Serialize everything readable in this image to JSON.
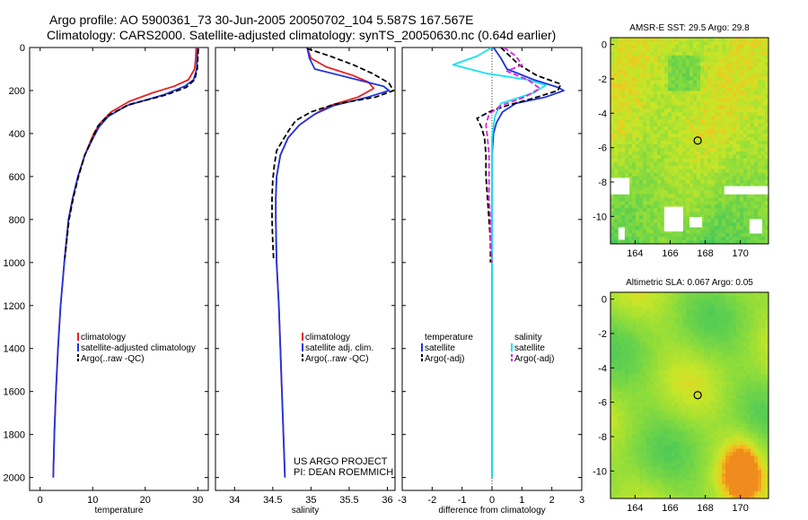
{
  "figure": {
    "title_line1": "Argo profile: AO 5900361_73 30-Jun-2005 20050702_104 5.587S 167.567E",
    "title_line2": "Climatology: CARS2000. Satellite-adjusted climatology: synTS_20050630.nc (0.64d earlier)",
    "credit_line1": "US ARGO PROJECT",
    "credit_line2": "PI: DEAN ROEMMICH"
  },
  "colors": {
    "climatology": "#e8201f",
    "satellite": "#1f35e0",
    "argo": "#000000",
    "salinity": "#19e3f0",
    "salinity_satellite": "#19e3f0",
    "salinity_argo": "#e020e0",
    "zero_line": "#000000"
  },
  "chart_data": [
    {
      "id": "temperature",
      "type": "line",
      "xlabel": "temperature",
      "ylabel": "",
      "xlim": [
        -2,
        32
      ],
      "ylim": [
        2060,
        0
      ],
      "xticks": [
        0,
        10,
        20,
        30
      ],
      "yticks": [
        0,
        200,
        400,
        600,
        800,
        1000,
        1200,
        1400,
        1600,
        1800,
        2000
      ],
      "legend": {
        "position": "middle-right",
        "entries": [
          {
            "label": "climatology",
            "color_key": "climatology",
            "dashed": false
          },
          {
            "label": "satellite-adjusted climatology",
            "color_key": "satellite",
            "dashed": false
          },
          {
            "label": "Argo(..raw -QC)",
            "color_key": "argo",
            "dashed": true
          }
        ]
      },
      "series": [
        {
          "name": "climatology",
          "color_key": "climatology",
          "dashed": false,
          "points": [
            [
              29.7,
              0
            ],
            [
              29.6,
              50
            ],
            [
              29.4,
              100
            ],
            [
              28.2,
              150
            ],
            [
              25.5,
              180
            ],
            [
              21.5,
              210
            ],
            [
              17,
              250
            ],
            [
              13.5,
              300
            ],
            [
              11.5,
              350
            ],
            [
              10.2,
              400
            ],
            [
              8.5,
              500
            ],
            [
              7.2,
              600
            ],
            [
              6.2,
              700
            ],
            [
              5.4,
              800
            ],
            [
              4.6,
              1000
            ],
            [
              3.9,
              1200
            ],
            [
              3.4,
              1400
            ],
            [
              3,
              1600
            ],
            [
              2.7,
              1800
            ],
            [
              2.5,
              2000
            ]
          ]
        },
        {
          "name": "satellite-adjusted climatology",
          "color_key": "satellite",
          "dashed": false,
          "points": [
            [
              30,
              0
            ],
            [
              29.9,
              50
            ],
            [
              29.8,
              100
            ],
            [
              29.2,
              150
            ],
            [
              27.5,
              180
            ],
            [
              23.5,
              220
            ],
            [
              16.5,
              270
            ],
            [
              13,
              320
            ],
            [
              11.2,
              370
            ],
            [
              10.1,
              420
            ],
            [
              8.5,
              500
            ],
            [
              7.2,
              600
            ],
            [
              6.2,
              700
            ],
            [
              5.4,
              800
            ],
            [
              4.6,
              1000
            ],
            [
              3.9,
              1200
            ],
            [
              3.4,
              1400
            ],
            [
              3,
              1600
            ],
            [
              2.7,
              1800
            ],
            [
              2.5,
              2000
            ]
          ]
        },
        {
          "name": "Argo(..raw -QC)",
          "color_key": "argo",
          "dashed": true,
          "points": [
            [
              30.1,
              5
            ],
            [
              30,
              50
            ],
            [
              29.9,
              100
            ],
            [
              29.4,
              150
            ],
            [
              27.8,
              185
            ],
            [
              24,
              220
            ],
            [
              17,
              265
            ],
            [
              13,
              315
            ],
            [
              11,
              365
            ],
            [
              10,
              420
            ],
            [
              8.5,
              500
            ],
            [
              7.3,
              600
            ],
            [
              6.3,
              700
            ],
            [
              5.5,
              800
            ],
            [
              4.7,
              980
            ]
          ]
        }
      ]
    },
    {
      "id": "salinity",
      "type": "line",
      "xlabel": "salinity",
      "ylabel": "",
      "xlim": [
        33.75,
        36.1
      ],
      "ylim": [
        2060,
        0
      ],
      "xticks": [
        34,
        34.5,
        35,
        35.5,
        36
      ],
      "yticks": [
        0,
        200,
        400,
        600,
        800,
        1000,
        1200,
        1400,
        1600,
        1800,
        2000
      ],
      "legend": {
        "position": "middle-right",
        "entries": [
          {
            "label": "climatology",
            "color_key": "climatology",
            "dashed": false
          },
          {
            "label": "satellite adj. clim.",
            "color_key": "satellite",
            "dashed": false
          },
          {
            "label": "Argo(..raw -QC)",
            "color_key": "argo",
            "dashed": true
          }
        ]
      },
      "series": [
        {
          "name": "climatology",
          "color_key": "climatology",
          "dashed": false,
          "points": [
            [
              34.95,
              0
            ],
            [
              35,
              50
            ],
            [
              35.2,
              90
            ],
            [
              35.55,
              130
            ],
            [
              35.75,
              160
            ],
            [
              35.82,
              190
            ],
            [
              35.62,
              230
            ],
            [
              35.25,
              270
            ],
            [
              35.05,
              310
            ],
            [
              34.85,
              360
            ],
            [
              34.7,
              420
            ],
            [
              34.6,
              500
            ],
            [
              34.55,
              600
            ],
            [
              34.54,
              700
            ],
            [
              34.54,
              800
            ],
            [
              34.55,
              1000
            ],
            [
              34.58,
              1200
            ],
            [
              34.6,
              1400
            ],
            [
              34.62,
              1600
            ],
            [
              34.64,
              1800
            ],
            [
              34.66,
              2000
            ]
          ]
        },
        {
          "name": "satellite adj. clim.",
          "color_key": "satellite",
          "dashed": false,
          "points": [
            [
              34.95,
              0
            ],
            [
              34.98,
              50
            ],
            [
              35.05,
              100
            ],
            [
              35.5,
              140
            ],
            [
              35.95,
              180
            ],
            [
              36.02,
              200
            ],
            [
              35.75,
              230
            ],
            [
              35.3,
              270
            ],
            [
              35.05,
              310
            ],
            [
              34.85,
              360
            ],
            [
              34.7,
              420
            ],
            [
              34.6,
              500
            ],
            [
              34.55,
              600
            ],
            [
              34.54,
              700
            ],
            [
              34.54,
              800
            ],
            [
              34.55,
              1000
            ],
            [
              34.58,
              1200
            ],
            [
              34.6,
              1400
            ],
            [
              34.62,
              1600
            ],
            [
              34.64,
              1800
            ],
            [
              34.66,
              2000
            ]
          ]
        },
        {
          "name": "Argo(..raw -QC)",
          "color_key": "argo",
          "dashed": true,
          "points": [
            [
              34.95,
              5
            ],
            [
              35.25,
              40
            ],
            [
              35.55,
              80
            ],
            [
              35.8,
              120
            ],
            [
              36.02,
              165
            ],
            [
              36.08,
              200
            ],
            [
              35.85,
              230
            ],
            [
              35.3,
              265
            ],
            [
              35,
              300
            ],
            [
              34.8,
              340
            ],
            [
              34.72,
              380
            ],
            [
              34.65,
              420
            ],
            [
              34.55,
              480
            ],
            [
              34.52,
              550
            ],
            [
              34.5,
              620
            ],
            [
              34.49,
              700
            ],
            [
              34.49,
              800
            ],
            [
              34.5,
              900
            ],
            [
              34.51,
              980
            ]
          ]
        }
      ]
    },
    {
      "id": "difference",
      "type": "line",
      "xlabel": "difference from climatology",
      "ylabel": "",
      "xlim": [
        -3,
        3
      ],
      "ylim": [
        2060,
        0
      ],
      "xticks": [
        -3,
        -2,
        -1,
        0,
        1,
        2,
        3
      ],
      "yticks": [
        0,
        200,
        400,
        600,
        800,
        1000,
        1200,
        1400,
        1600,
        1800,
        2000
      ],
      "legend": {
        "position": "middle",
        "entries": [
          {
            "label": "temperature",
            "color_key": "",
            "dashed": false,
            "column": 0
          },
          {
            "label": "satellite",
            "color_key": "satellite",
            "dashed": false,
            "column": 0
          },
          {
            "label": "Argo(-adj)",
            "color_key": "argo",
            "dashed": true,
            "column": 0
          },
          {
            "label": "salinity",
            "color_key": "",
            "dashed": false,
            "column": 1
          },
          {
            "label": "satellite",
            "color_key": "salinity_satellite",
            "dashed": false,
            "column": 1
          },
          {
            "label": "Argo(-adj)",
            "color_key": "salinity_argo",
            "dashed": true,
            "column": 1
          }
        ]
      },
      "series": [
        {
          "name": "temperature satellite",
          "color_key": "satellite",
          "dashed": false,
          "points": [
            [
              0.05,
              0
            ],
            [
              0.3,
              50
            ],
            [
              0.5,
              100
            ],
            [
              1.4,
              150
            ],
            [
              2.2,
              185
            ],
            [
              2.4,
              200
            ],
            [
              1.8,
              230
            ],
            [
              0.8,
              260
            ],
            [
              0.35,
              300
            ],
            [
              0.15,
              350
            ],
            [
              0.05,
              400
            ],
            [
              0,
              500
            ],
            [
              0,
              700
            ],
            [
              0,
              1000
            ],
            [
              0,
              2000
            ]
          ]
        },
        {
          "name": "temperature Argo(-adj)",
          "color_key": "argo",
          "dashed": true,
          "points": [
            [
              0.3,
              0
            ],
            [
              0.6,
              40
            ],
            [
              0.9,
              80
            ],
            [
              1.5,
              130
            ],
            [
              2.3,
              170
            ],
            [
              2.2,
              200
            ],
            [
              1.4,
              235
            ],
            [
              0.5,
              270
            ],
            [
              -0.1,
              300
            ],
            [
              -0.5,
              330
            ],
            [
              -0.35,
              370
            ],
            [
              -0.25,
              420
            ],
            [
              -0.2,
              500
            ],
            [
              -0.2,
              600
            ],
            [
              -0.15,
              700
            ],
            [
              -0.1,
              800
            ],
            [
              -0.05,
              900
            ],
            [
              -0.05,
              1000
            ]
          ]
        },
        {
          "name": "salinity satellite",
          "color_key": "salinity_satellite",
          "dashed": false,
          "points": [
            [
              0,
              0
            ],
            [
              -0.5,
              40
            ],
            [
              -1.3,
              80
            ],
            [
              -0.2,
              120
            ],
            [
              1.2,
              150
            ],
            [
              1.8,
              175
            ],
            [
              1.4,
              210
            ],
            [
              0.3,
              260
            ],
            [
              0.1,
              320
            ],
            [
              0,
              420
            ],
            [
              0,
              600
            ],
            [
              0,
              1000
            ],
            [
              0,
              2000
            ]
          ]
        },
        {
          "name": "salinity Argo(-adj)",
          "color_key": "salinity_argo",
          "dashed": true,
          "points": [
            [
              0.4,
              0
            ],
            [
              0.8,
              40
            ],
            [
              1,
              80
            ],
            [
              0.5,
              110
            ],
            [
              1.2,
              150
            ],
            [
              1.6,
              190
            ],
            [
              1.1,
              230
            ],
            [
              0.3,
              270
            ],
            [
              -0.1,
              310
            ],
            [
              -0.2,
              360
            ],
            [
              -0.15,
              420
            ],
            [
              -0.1,
              500
            ],
            [
              -0.1,
              700
            ],
            [
              -0.05,
              800
            ],
            [
              -0.05,
              900
            ],
            [
              0,
              1000
            ]
          ]
        }
      ]
    },
    {
      "id": "sst_map",
      "type": "heatmap",
      "title": "AMSR-E SST: 29.5 Argo: 29.8",
      "xlim": [
        162.6,
        171.6
      ],
      "ylim": [
        -11.6,
        0.4
      ],
      "xticks": [
        164,
        166,
        168,
        170
      ],
      "yticks": [
        0,
        -2,
        -4,
        -6,
        -8,
        -10
      ],
      "marker": {
        "lon": 167.567,
        "lat": -5.587
      }
    },
    {
      "id": "sla_map",
      "type": "heatmap",
      "title": "Altimetric SLA: 0.067 Argo: 0.05",
      "xlim": [
        162.6,
        171.6
      ],
      "ylim": [
        -11.6,
        0.4
      ],
      "xticks": [
        164,
        166,
        168,
        170
      ],
      "yticks": [
        0,
        -2,
        -4,
        -6,
        -8,
        -10
      ],
      "marker": {
        "lon": 167.567,
        "lat": -5.587
      }
    }
  ]
}
